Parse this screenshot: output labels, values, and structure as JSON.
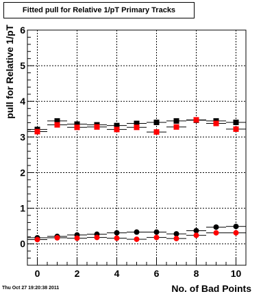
{
  "title": "Fitted pull for Relative 1/pT Primary Tracks",
  "timestamp": "Thu Oct 27 19:20:38 2011",
  "chart_data": {
    "type": "scatter",
    "xlabel": "No. of Bad Points",
    "ylabel": "pull for Relative 1/pT",
    "xlim": [
      -0.5,
      10.5
    ],
    "ylim": [
      -0.6,
      6.0
    ],
    "x_ticks": [
      0,
      2,
      4,
      6,
      8,
      10
    ],
    "y_ticks": [
      0,
      1,
      2,
      3,
      4,
      5,
      6
    ],
    "grid": true,
    "series": [
      {
        "marker": "square",
        "color": "#000000",
        "x": [
          0,
          1,
          2,
          3,
          4,
          5,
          6,
          7,
          8,
          9,
          10
        ],
        "y": [
          3.21,
          3.45,
          3.36,
          3.34,
          3.32,
          3.38,
          3.41,
          3.45,
          3.47,
          3.45,
          3.41
        ]
      },
      {
        "marker": "square",
        "color": "#ff0000",
        "x": [
          0,
          1,
          2,
          3,
          4,
          5,
          6,
          7,
          8,
          9,
          10
        ],
        "y": [
          3.15,
          3.34,
          3.27,
          3.28,
          3.21,
          3.27,
          3.14,
          3.28,
          3.48,
          3.38,
          3.22
        ]
      },
      {
        "marker": "circle",
        "color": "#000000",
        "x": [
          0,
          1,
          2,
          3,
          4,
          5,
          6,
          7,
          8,
          9,
          10
        ],
        "y": [
          0.17,
          0.21,
          0.25,
          0.27,
          0.31,
          0.33,
          0.33,
          0.28,
          0.37,
          0.47,
          0.49
        ]
      },
      {
        "marker": "circle",
        "color": "#ff0000",
        "x": [
          0,
          1,
          2,
          3,
          4,
          5,
          6,
          7,
          8,
          9,
          10
        ],
        "y": [
          0.12,
          0.17,
          0.16,
          0.18,
          0.16,
          0.13,
          0.18,
          0.15,
          0.24,
          0.31,
          0.31
        ]
      }
    ]
  }
}
